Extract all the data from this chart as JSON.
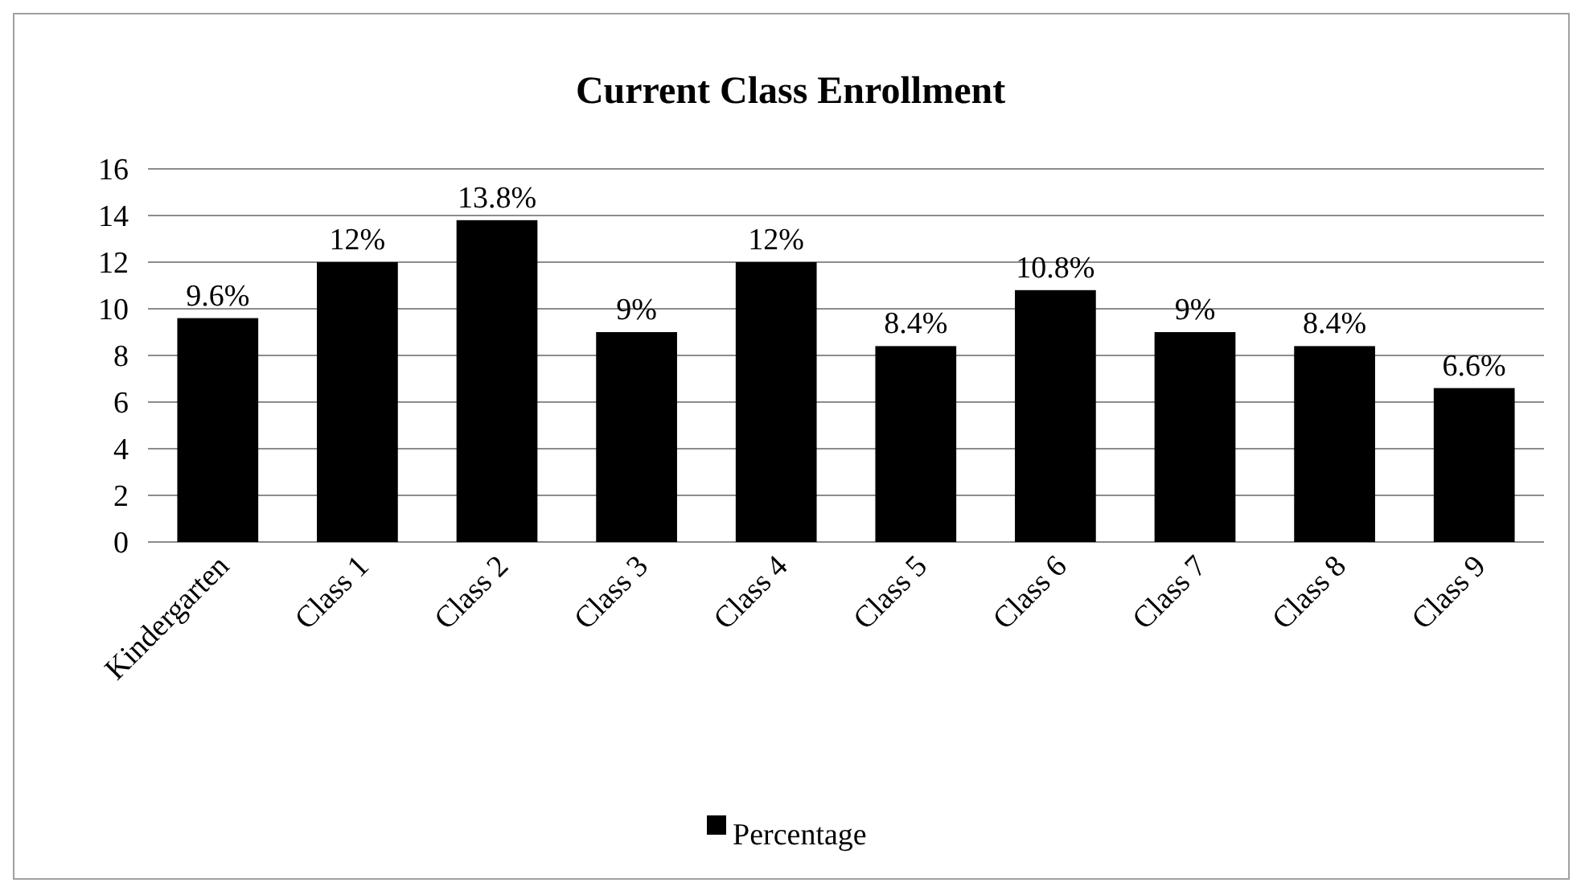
{
  "chart_data": {
    "type": "bar",
    "title": "Current Class Enrollment",
    "categories": [
      "Kindergarten",
      "Class 1",
      "Class 2",
      "Class 3",
      "Class 4",
      "Class 5",
      "Class 6",
      "Class 7",
      "Class 8",
      "Class 9"
    ],
    "series": [
      {
        "name": "Percentage",
        "color": "#000000",
        "values": [
          9.6,
          12,
          13.8,
          9,
          12,
          8.4,
          10.8,
          9,
          8.4,
          6.6
        ],
        "value_labels": [
          "9.6%",
          "12%",
          "13.8%",
          "9%",
          "12%",
          "8.4%",
          "10.8%",
          "9%",
          "8.4%",
          "6.6%"
        ]
      }
    ],
    "ylim": [
      0,
      16
    ],
    "yticks": [
      0,
      2,
      4,
      6,
      8,
      10,
      12,
      14,
      16
    ],
    "grid": "y",
    "legend": "bottom"
  }
}
